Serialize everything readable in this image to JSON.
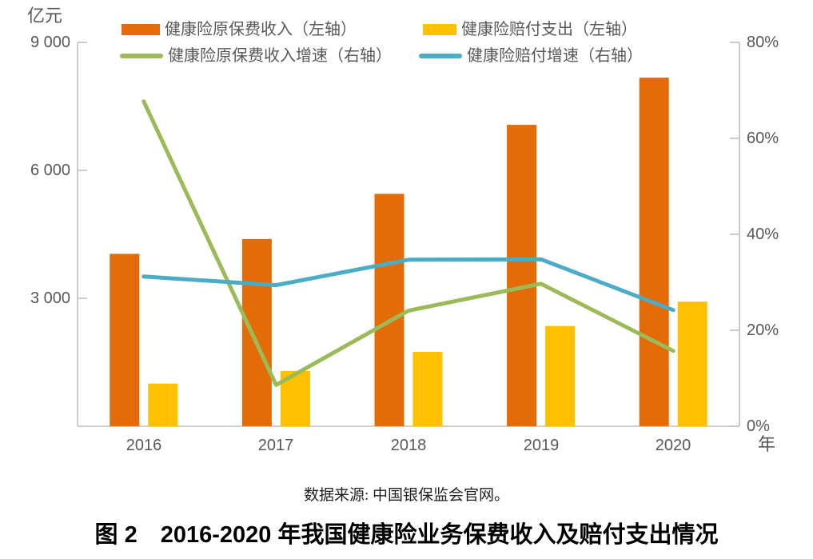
{
  "chart_data": {
    "type": "combo-bar-line",
    "categories": [
      "2016",
      "2017",
      "2018",
      "2019",
      "2020"
    ],
    "x_axis_unit": "年",
    "left_axis": {
      "unit_label": "亿元",
      "min": 0,
      "max": 9000,
      "tick_values": [
        9000,
        6000,
        3000
      ],
      "tick_labels": [
        "9 000",
        "6 000",
        "3 000"
      ]
    },
    "right_axis": {
      "min": 0,
      "max": 80,
      "tick_values": [
        80,
        60,
        40,
        20,
        0
      ],
      "tick_labels": [
        "80%",
        "60%",
        "40%",
        "20%",
        "0%"
      ]
    },
    "bar_series": [
      {
        "name": "健康险原保费收入（左轴）",
        "axis": "left",
        "color": "#E36C09",
        "values": [
          4042,
          4390,
          5448,
          7066,
          8173
        ]
      },
      {
        "name": "健康险赔付支出（左轴）",
        "axis": "left",
        "color": "#FFC000",
        "values": [
          1001,
          1295,
          1744,
          2351,
          2921
        ]
      }
    ],
    "line_series": [
      {
        "name": "健康险原保费收入增速（右轴）",
        "axis": "right",
        "color": "#9BBB59",
        "values_pct": [
          67.7,
          8.6,
          24.1,
          29.7,
          15.7
        ]
      },
      {
        "name": "健康险赔付增速（右轴）",
        "axis": "right",
        "color": "#4BACC6",
        "values_pct": [
          31.2,
          29.4,
          34.7,
          34.8,
          24.2
        ]
      }
    ],
    "axis_color": "#BFBFBF",
    "grid": false,
    "legend_position": "top"
  },
  "source_note": "数据来源: 中国银保监会官网。",
  "caption": "图 2　2016-2020 年我国健康险业务保费收入及赔付支出情况"
}
